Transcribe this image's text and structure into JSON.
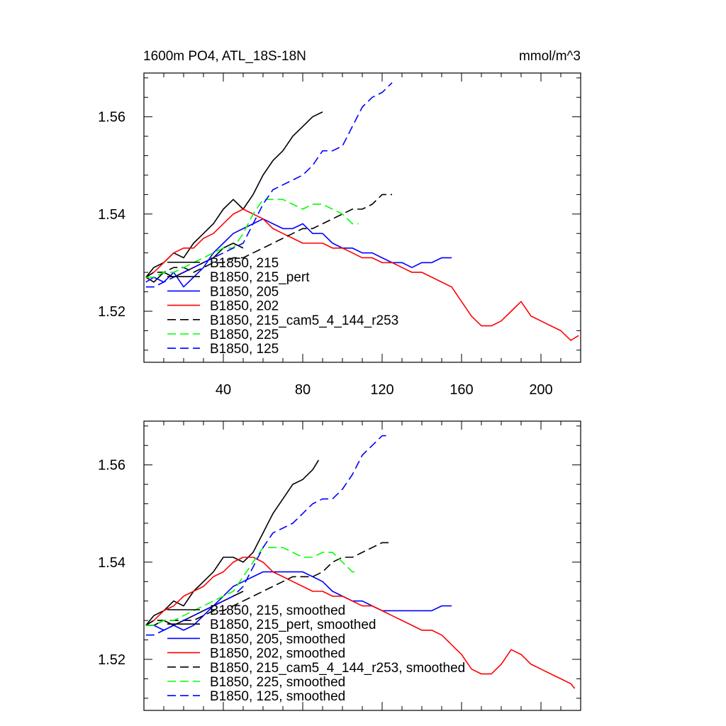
{
  "chart_data": [
    {
      "type": "line",
      "panel": "raw",
      "title_left": "1600m PO4, ATL_18S-18N",
      "title_right": "mmol/m^3",
      "xlabel": "",
      "ylabel": "",
      "xlim": [
        0,
        220
      ],
      "ylim": [
        1.5095,
        1.569
      ],
      "xticks": [
        40,
        80,
        120,
        160,
        200
      ],
      "xtick_labels": [
        "40",
        "80",
        "120",
        "160",
        "200"
      ],
      "yticks": [
        1.52,
        1.54,
        1.56
      ],
      "ytick_labels": [
        "1.52",
        "1.54",
        "1.56"
      ],
      "legend_position": "lower-left",
      "series": [
        {
          "name": "B1850, 215",
          "color": "#000000",
          "dash": "solid",
          "x": [
            1,
            5,
            10,
            15,
            20,
            25,
            30,
            35,
            40,
            45,
            50,
            55,
            60,
            65,
            70,
            75,
            80,
            85,
            90
          ],
          "y": [
            1.527,
            1.529,
            1.53,
            1.532,
            1.531,
            1.534,
            1.536,
            1.538,
            1.541,
            1.543,
            1.541,
            1.544,
            1.548,
            1.551,
            1.553,
            1.556,
            1.558,
            1.56,
            1.561
          ]
        },
        {
          "name": "B1850, 215_pert",
          "color": "#000000",
          "dash": "solid",
          "x": [
            1,
            5,
            10,
            15,
            20,
            25,
            30,
            35,
            40,
            45,
            50
          ],
          "y": [
            1.527,
            1.526,
            1.528,
            1.527,
            1.528,
            1.529,
            1.53,
            1.531,
            1.533,
            1.534,
            1.533
          ]
        },
        {
          "name": "B1850, 205",
          "color": "#0000ff",
          "dash": "solid",
          "x": [
            1,
            5,
            10,
            15,
            20,
            25,
            30,
            35,
            40,
            45,
            50,
            55,
            60,
            65,
            70,
            75,
            80,
            85,
            90,
            95,
            100,
            105,
            110,
            115,
            120,
            125,
            130,
            135,
            140,
            145,
            150,
            155
          ],
          "y": [
            1.526,
            1.527,
            1.526,
            1.528,
            1.525,
            1.527,
            1.529,
            1.532,
            1.534,
            1.536,
            1.537,
            1.538,
            1.539,
            1.538,
            1.537,
            1.537,
            1.538,
            1.536,
            1.536,
            1.534,
            1.533,
            1.533,
            1.532,
            1.532,
            1.531,
            1.53,
            1.53,
            1.529,
            1.53,
            1.53,
            1.531,
            1.531
          ]
        },
        {
          "name": "B1850, 202",
          "color": "#ff0000",
          "dash": "solid",
          "x": [
            1,
            5,
            10,
            15,
            20,
            25,
            30,
            35,
            40,
            45,
            50,
            55,
            60,
            65,
            70,
            75,
            80,
            85,
            90,
            95,
            100,
            105,
            110,
            115,
            120,
            125,
            130,
            135,
            140,
            145,
            150,
            155,
            160,
            165,
            170,
            175,
            180,
            185,
            190,
            195,
            200,
            205,
            210,
            215,
            219
          ],
          "y": [
            1.527,
            1.528,
            1.53,
            1.532,
            1.533,
            1.533,
            1.535,
            1.536,
            1.538,
            1.54,
            1.541,
            1.54,
            1.539,
            1.537,
            1.536,
            1.535,
            1.534,
            1.534,
            1.534,
            1.533,
            1.533,
            1.532,
            1.531,
            1.531,
            1.53,
            1.53,
            1.529,
            1.528,
            1.528,
            1.527,
            1.526,
            1.525,
            1.522,
            1.519,
            1.517,
            1.517,
            1.518,
            1.52,
            1.522,
            1.519,
            1.518,
            1.517,
            1.516,
            1.514,
            1.515
          ]
        },
        {
          "name": "B1850, 215_cam5_4_144_r253",
          "color": "#000000",
          "dash": "dashed",
          "x": [
            1,
            5,
            10,
            15,
            20,
            25,
            30,
            35,
            40,
            45,
            50,
            55,
            60,
            65,
            70,
            75,
            80,
            85,
            90,
            95,
            100,
            105,
            110,
            115,
            120,
            125
          ],
          "y": [
            1.527,
            1.528,
            1.528,
            1.529,
            1.529,
            1.528,
            1.529,
            1.53,
            1.53,
            1.531,
            1.531,
            1.532,
            1.533,
            1.534,
            1.535,
            1.536,
            1.537,
            1.537,
            1.538,
            1.539,
            1.54,
            1.541,
            1.541,
            1.542,
            1.544,
            1.544
          ]
        },
        {
          "name": "B1850, 225",
          "color": "#00ff00",
          "dash": "dashed",
          "x": [
            1,
            5,
            10,
            15,
            20,
            25,
            30,
            35,
            40,
            45,
            50,
            55,
            60,
            65,
            70,
            75,
            80,
            85,
            90,
            95,
            100,
            105,
            108
          ],
          "y": [
            1.527,
            1.527,
            1.528,
            1.528,
            1.529,
            1.53,
            1.531,
            1.532,
            1.533,
            1.533,
            1.536,
            1.54,
            1.543,
            1.543,
            1.543,
            1.542,
            1.541,
            1.542,
            1.542,
            1.541,
            1.54,
            1.538,
            1.538
          ]
        },
        {
          "name": "B1850, 125",
          "color": "#0000ff",
          "dash": "dashed",
          "x": [
            1,
            5,
            10,
            15,
            20,
            25,
            30,
            35,
            40,
            45,
            50,
            55,
            60,
            65,
            70,
            75,
            80,
            85,
            90,
            95,
            100,
            105,
            110,
            115,
            120,
            125
          ],
          "y": [
            1.525,
            1.525,
            1.526,
            1.527,
            1.528,
            1.529,
            1.53,
            1.531,
            1.532,
            1.533,
            1.534,
            1.538,
            1.542,
            1.545,
            1.546,
            1.547,
            1.548,
            1.55,
            1.553,
            1.553,
            1.554,
            1.558,
            1.562,
            1.564,
            1.565,
            1.567
          ]
        }
      ]
    },
    {
      "type": "line",
      "panel": "smoothed",
      "xlabel": "",
      "ylabel": "",
      "xlim": [
        0,
        220
      ],
      "ylim": [
        1.5095,
        1.569
      ],
      "xticks": [
        40,
        80,
        120,
        160,
        200
      ],
      "yticks": [
        1.52,
        1.54,
        1.56
      ],
      "ytick_labels": [
        "1.52",
        "1.54",
        "1.56"
      ],
      "legend_position": "lower-left",
      "series": [
        {
          "name": "B1850, 215, smoothed",
          "color": "#000000",
          "dash": "solid",
          "x": [
            1,
            5,
            10,
            15,
            20,
            25,
            30,
            35,
            40,
            45,
            50,
            55,
            60,
            65,
            70,
            75,
            80,
            85,
            88
          ],
          "y": [
            1.527,
            1.529,
            1.53,
            1.532,
            1.531,
            1.534,
            1.536,
            1.538,
            1.541,
            1.541,
            1.54,
            1.542,
            1.546,
            1.55,
            1.553,
            1.556,
            1.557,
            1.559,
            1.561
          ]
        },
        {
          "name": "B1850, 215_pert, smoothed",
          "color": "#000000",
          "dash": "solid",
          "x": [
            1,
            5,
            10,
            15,
            20,
            25,
            30,
            35,
            40,
            45,
            50
          ],
          "y": [
            1.527,
            1.527,
            1.528,
            1.527,
            1.528,
            1.529,
            1.53,
            1.531,
            1.532,
            1.533,
            1.534
          ]
        },
        {
          "name": "B1850, 205, smoothed",
          "color": "#0000ff",
          "dash": "solid",
          "x": [
            1,
            5,
            10,
            15,
            20,
            25,
            30,
            35,
            40,
            45,
            50,
            55,
            60,
            65,
            70,
            75,
            80,
            85,
            90,
            95,
            100,
            105,
            110,
            115,
            120,
            125,
            130,
            135,
            140,
            145,
            150,
            155
          ],
          "y": [
            1.527,
            1.527,
            1.526,
            1.527,
            1.526,
            1.527,
            1.529,
            1.531,
            1.533,
            1.535,
            1.536,
            1.537,
            1.538,
            1.538,
            1.538,
            1.538,
            1.538,
            1.537,
            1.536,
            1.534,
            1.533,
            1.532,
            1.532,
            1.531,
            1.53,
            1.53,
            1.53,
            1.53,
            1.53,
            1.53,
            1.531,
            1.531
          ]
        },
        {
          "name": "B1850, 202, smoothed",
          "color": "#ff0000",
          "dash": "solid",
          "x": [
            1,
            5,
            10,
            15,
            20,
            25,
            30,
            35,
            40,
            45,
            50,
            55,
            60,
            65,
            70,
            75,
            80,
            85,
            90,
            95,
            100,
            105,
            110,
            115,
            120,
            125,
            130,
            135,
            140,
            145,
            150,
            155,
            160,
            165,
            170,
            175,
            180,
            185,
            190,
            195,
            200,
            205,
            210,
            215,
            217
          ],
          "y": [
            1.527,
            1.528,
            1.53,
            1.531,
            1.533,
            1.534,
            1.535,
            1.537,
            1.538,
            1.54,
            1.541,
            1.541,
            1.54,
            1.538,
            1.537,
            1.536,
            1.535,
            1.534,
            1.534,
            1.533,
            1.533,
            1.532,
            1.531,
            1.531,
            1.53,
            1.529,
            1.528,
            1.527,
            1.526,
            1.526,
            1.525,
            1.523,
            1.521,
            1.518,
            1.517,
            1.517,
            1.519,
            1.522,
            1.521,
            1.519,
            1.518,
            1.517,
            1.516,
            1.515,
            1.514
          ]
        },
        {
          "name": "B1850, 215_cam5_4_144_r253, smoothed",
          "color": "#000000",
          "dash": "dashed",
          "x": [
            1,
            5,
            10,
            15,
            20,
            25,
            30,
            35,
            40,
            45,
            50,
            55,
            60,
            65,
            70,
            75,
            80,
            85,
            90,
            95,
            100,
            105,
            110,
            115,
            120,
            125
          ],
          "y": [
            1.527,
            1.528,
            1.528,
            1.528,
            1.528,
            1.528,
            1.529,
            1.53,
            1.53,
            1.531,
            1.532,
            1.533,
            1.534,
            1.535,
            1.536,
            1.537,
            1.537,
            1.537,
            1.538,
            1.54,
            1.541,
            1.541,
            1.542,
            1.543,
            1.544,
            1.544
          ]
        },
        {
          "name": "B1850, 225, smoothed",
          "color": "#00ff00",
          "dash": "dashed",
          "x": [
            1,
            5,
            10,
            15,
            20,
            25,
            30,
            35,
            40,
            45,
            50,
            55,
            60,
            65,
            70,
            75,
            80,
            85,
            90,
            95,
            100,
            105,
            108
          ],
          "y": [
            1.527,
            1.527,
            1.528,
            1.528,
            1.529,
            1.53,
            1.531,
            1.532,
            1.533,
            1.534,
            1.537,
            1.54,
            1.543,
            1.543,
            1.543,
            1.542,
            1.541,
            1.541,
            1.542,
            1.542,
            1.54,
            1.538,
            1.538
          ]
        },
        {
          "name": "B1850, 125, smoothed",
          "color": "#0000ff",
          "dash": "dashed",
          "x": [
            1,
            5,
            10,
            15,
            20,
            25,
            30,
            35,
            40,
            45,
            50,
            55,
            60,
            65,
            70,
            75,
            80,
            85,
            90,
            95,
            100,
            105,
            110,
            115,
            120,
            122
          ],
          "y": [
            1.525,
            1.525,
            1.526,
            1.527,
            1.528,
            1.529,
            1.53,
            1.531,
            1.532,
            1.533,
            1.535,
            1.539,
            1.543,
            1.546,
            1.547,
            1.548,
            1.55,
            1.552,
            1.553,
            1.553,
            1.555,
            1.558,
            1.562,
            1.564,
            1.566,
            1.566
          ]
        }
      ]
    }
  ]
}
